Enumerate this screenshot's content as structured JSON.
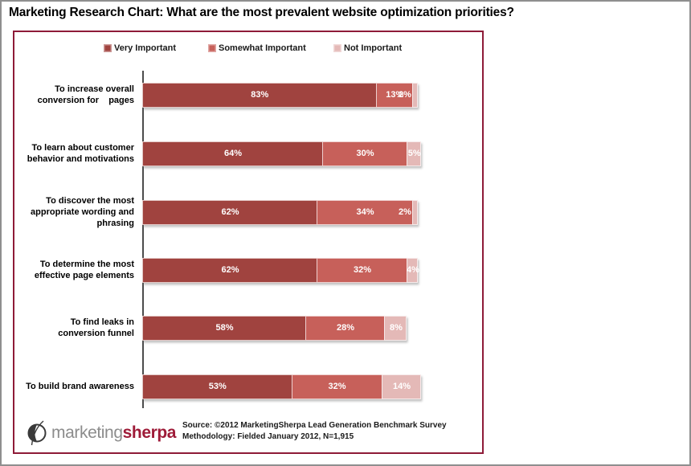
{
  "title": "Marketing Research Chart: What are the most prevalent website optimization priorities?",
  "chart_data": {
    "type": "bar",
    "orientation": "horizontal",
    "stacked": true,
    "value_format": "percent",
    "xlim": [
      0,
      100
    ],
    "legend_position": "top",
    "grid": false,
    "categories": [
      "To increase overall\nconversion for    pages",
      "To learn about customer\nbehavior and motivations",
      "To discover the most\nappropriate wording and\nphrasing",
      "To determine the most\neffective page elements",
      "To find leaks in\nconversion funnel",
      "To build brand awareness"
    ],
    "series": [
      {
        "name": "Very Important",
        "color": "#a0433f",
        "values": [
          83,
          64,
          62,
          62,
          58,
          53
        ]
      },
      {
        "name": "Somewhat Important",
        "color": "#c7605a",
        "values": [
          13,
          30,
          34,
          32,
          28,
          32
        ]
      },
      {
        "name": "Not Important",
        "color": "#e4b9b7",
        "values": [
          2,
          5,
          2,
          4,
          8,
          14
        ]
      }
    ]
  },
  "footer": {
    "logo_text_gray": "marketing",
    "logo_text_red": "sherpa",
    "source_line1": "Source: ©2012 MarketingSherpa Lead Generation Benchmark Survey",
    "source_line2": "Methodology: Fielded January 2012, N=1,915"
  },
  "colors": {
    "frame_border": "#8e1b38",
    "axis_line": "#4c4c4c",
    "bar_label_text": "#ffffff",
    "logo_gray": "#8c8c8c",
    "logo_red": "#9e1b38"
  }
}
